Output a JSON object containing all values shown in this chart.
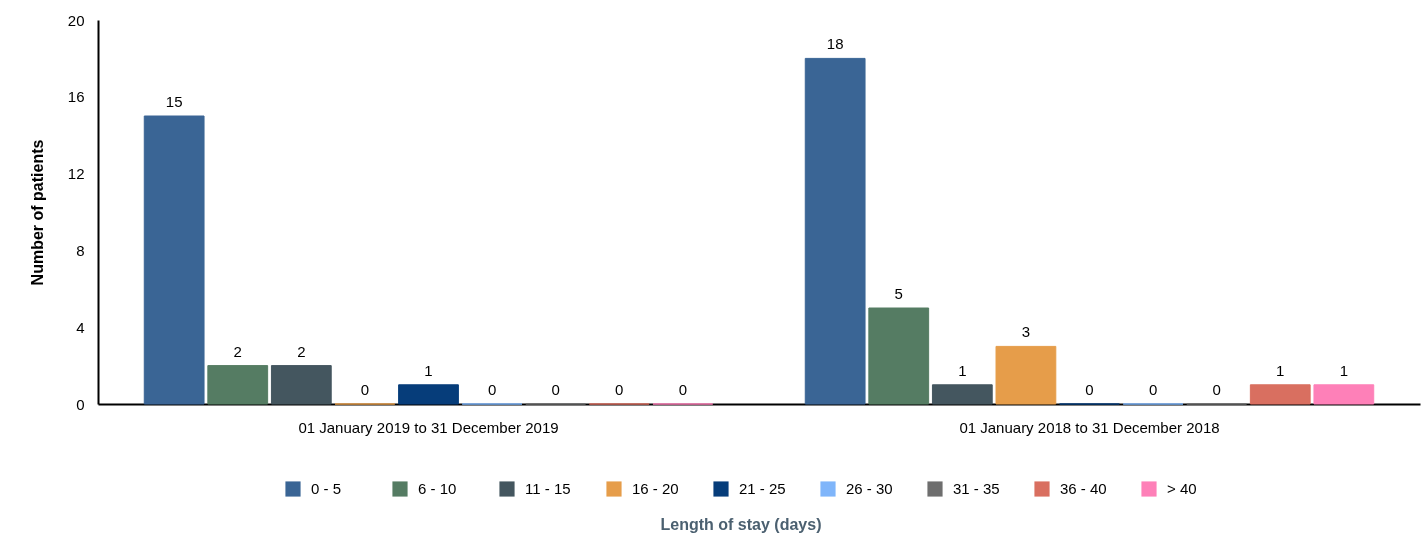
{
  "chart_data": {
    "type": "bar",
    "ylabel": "Number of patients",
    "legend_title": "Length of stay (days)",
    "categories": [
      "01 January 2019 to 31 December 2019",
      "01 January 2018 to 31 December 2018"
    ],
    "series": [
      {
        "name": "0 - 5",
        "color": "#3a6595",
        "values": [
          15,
          18
        ]
      },
      {
        "name": "6 - 10",
        "color": "#557c63",
        "values": [
          2,
          5
        ]
      },
      {
        "name": "11 - 15",
        "color": "#44565f",
        "values": [
          2,
          1
        ]
      },
      {
        "name": "16 - 20",
        "color": "#e69d4a",
        "values": [
          0,
          3
        ]
      },
      {
        "name": "21 - 25",
        "color": "#063d7a",
        "values": [
          1,
          0
        ]
      },
      {
        "name": "26 - 30",
        "color": "#7fb5fa",
        "values": [
          0,
          0
        ]
      },
      {
        "name": "31 - 35",
        "color": "#6e6e6e",
        "values": [
          0,
          0
        ]
      },
      {
        "name": "36 - 40",
        "color": "#d96f60",
        "values": [
          0,
          1
        ]
      },
      {
        "name": "> 40",
        "color": "#fe80b8",
        "values": [
          0,
          1
        ]
      }
    ],
    "ylim": [
      0,
      20
    ],
    "yticks": [
      0,
      4,
      8,
      12,
      16,
      20
    ],
    "data_labels": true,
    "legend": "bottom"
  }
}
